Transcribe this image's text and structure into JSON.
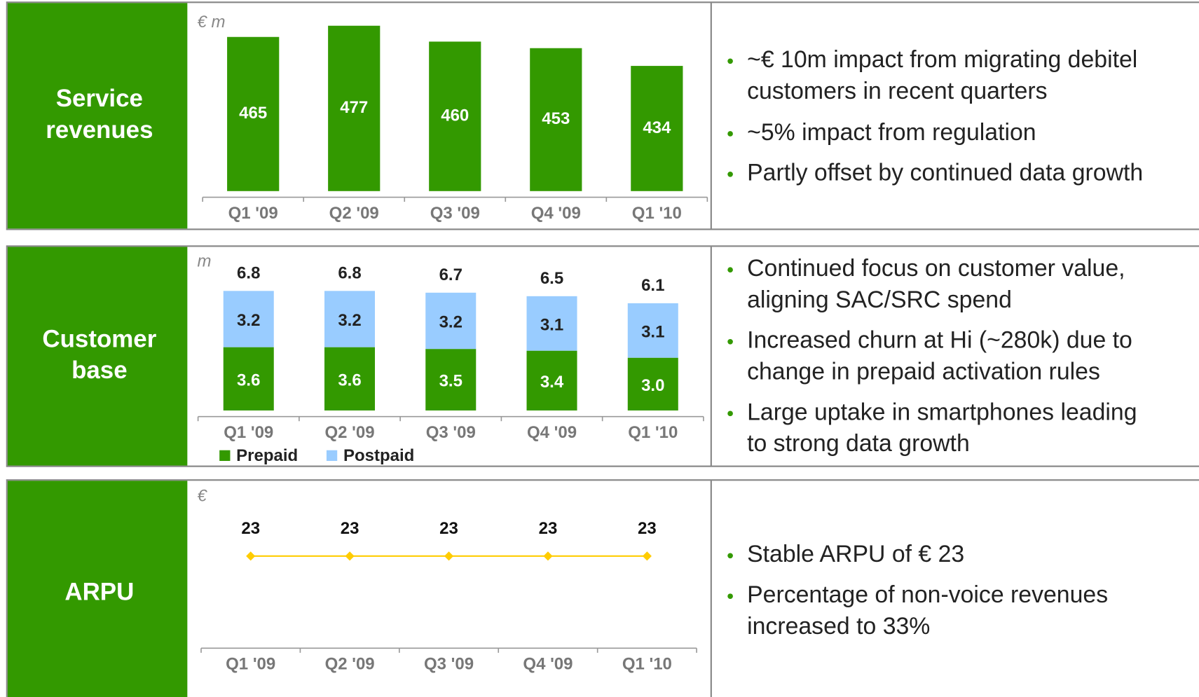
{
  "panels": [
    {
      "heading": [
        "Service",
        "revenues"
      ],
      "bullets": [
        [
          "~€ 10m impact from migrating debitel",
          "customers in recent quarters"
        ],
        [
          "~5% impact from regulation"
        ],
        [
          "Partly offset by continued data growth"
        ]
      ]
    },
    {
      "heading": [
        "Customer",
        "base"
      ],
      "bullets": [
        [
          "Continued focus on customer value,",
          "aligning SAC/SRC spend"
        ],
        [
          "Increased churn at Hi (~280k) due to",
          "change in prepaid activation rules"
        ],
        [
          "Large uptake in smartphones leading",
          "to strong data growth"
        ]
      ]
    },
    {
      "heading": [
        "ARPU"
      ],
      "bullets": [
        [
          "Stable ARPU of € 23"
        ],
        [
          "Percentage of non-voice revenues",
          "increased to 33%"
        ]
      ]
    }
  ],
  "chart_data": [
    {
      "type": "bar",
      "unit": "€ m",
      "categories": [
        "Q1 '09",
        "Q2 '09",
        "Q3 '09",
        "Q4 '09",
        "Q1 '10"
      ],
      "values": [
        465,
        477,
        460,
        453,
        434
      ],
      "color": "#339900",
      "ylim": [
        300,
        480
      ]
    },
    {
      "type": "stacked_bar",
      "unit": "m",
      "categories": [
        "Q1 '09",
        "Q2 '09",
        "Q3 '09",
        "Q4 '09",
        "Q1 '10"
      ],
      "series": [
        {
          "name": "Prepaid",
          "color": "#339900",
          "values": [
            3.6,
            3.6,
            3.5,
            3.4,
            3.0
          ],
          "value_labels": [
            "3.6",
            "3.6",
            "3.5",
            "3.4",
            "3.0"
          ]
        },
        {
          "name": "Postpaid",
          "color": "#99ccff",
          "values": [
            3.2,
            3.2,
            3.2,
            3.1,
            3.1
          ]
        }
      ],
      "totals": [
        6.8,
        6.8,
        6.7,
        6.5,
        6.1
      ],
      "ylim": [
        0,
        7
      ]
    },
    {
      "type": "line",
      "unit": "€",
      "categories": [
        "Q1 '09",
        "Q2 '09",
        "Q3 '09",
        "Q4 '09",
        "Q1 '10"
      ],
      "values": [
        23,
        23,
        23,
        23,
        23
      ],
      "color": "#ffcc00",
      "ylim": [
        0,
        25
      ]
    }
  ]
}
